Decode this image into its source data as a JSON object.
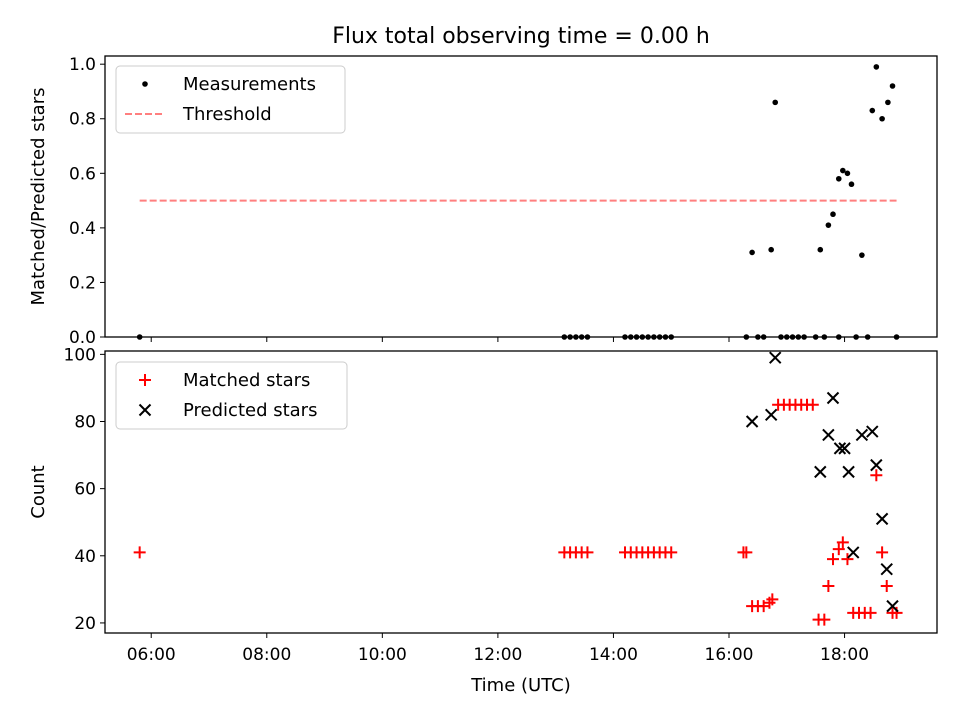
{
  "figure": {
    "title": "Flux total observing time = 0.00 h"
  },
  "chart_data": [
    {
      "type": "scatter",
      "ylabel": "Matched/Predicted stars",
      "xlabel": "",
      "xlim": [
        5.2,
        19.6
      ],
      "ylim": [
        0,
        1.03
      ],
      "yticks": [
        0.0,
        0.2,
        0.4,
        0.6,
        0.8,
        1.0
      ],
      "ytick_labels": [
        "0.0",
        "0.2",
        "0.4",
        "0.6",
        "0.8",
        "1.0"
      ],
      "xticks": [
        6,
        8,
        10,
        12,
        14,
        16,
        18
      ],
      "show_x_tick_labels": false,
      "legend_position": "top-left",
      "legend": [
        {
          "label": "Measurements",
          "marker": "dot",
          "color": "#000000"
        },
        {
          "label": "Threshold",
          "marker": "dashed-line",
          "color": "#ff7f7f"
        }
      ],
      "threshold": {
        "y": 0.5,
        "x_start": 5.8,
        "x_end": 18.9,
        "color": "#ff7f7f"
      },
      "series": [
        {
          "name": "Measurements",
          "color": "#000000",
          "points": [
            [
              5.8,
              0.0
            ],
            [
              13.15,
              0.0
            ],
            [
              13.25,
              0.0
            ],
            [
              13.35,
              0.0
            ],
            [
              13.45,
              0.0
            ],
            [
              13.55,
              0.0
            ],
            [
              14.2,
              0.0
            ],
            [
              14.3,
              0.0
            ],
            [
              14.4,
              0.0
            ],
            [
              14.5,
              0.0
            ],
            [
              14.6,
              0.0
            ],
            [
              14.7,
              0.0
            ],
            [
              14.8,
              0.0
            ],
            [
              14.9,
              0.0
            ],
            [
              15.0,
              0.0
            ],
            [
              16.3,
              0.0
            ],
            [
              16.5,
              0.0
            ],
            [
              16.6,
              0.0
            ],
            [
              16.9,
              0.0
            ],
            [
              17.0,
              0.0
            ],
            [
              17.1,
              0.0
            ],
            [
              17.2,
              0.0
            ],
            [
              17.3,
              0.0
            ],
            [
              17.5,
              0.0
            ],
            [
              17.65,
              0.0
            ],
            [
              17.9,
              0.0
            ],
            [
              18.2,
              0.0
            ],
            [
              18.4,
              0.0
            ],
            [
              18.9,
              0.0
            ],
            [
              16.4,
              0.31
            ],
            [
              16.73,
              0.32
            ],
            [
              16.8,
              0.86
            ],
            [
              17.58,
              0.32
            ],
            [
              17.72,
              0.41
            ],
            [
              17.8,
              0.45
            ],
            [
              17.9,
              0.58
            ],
            [
              17.97,
              0.61
            ],
            [
              18.05,
              0.6
            ],
            [
              18.12,
              0.56
            ],
            [
              18.3,
              0.3
            ],
            [
              18.48,
              0.83
            ],
            [
              18.55,
              0.99
            ],
            [
              18.65,
              0.8
            ],
            [
              18.75,
              0.86
            ],
            [
              18.83,
              0.92
            ]
          ]
        }
      ]
    },
    {
      "type": "scatter",
      "ylabel": "Count",
      "xlabel": "Time (UTC)",
      "xlim": [
        5.2,
        19.6
      ],
      "ylim": [
        17,
        101
      ],
      "yticks": [
        20,
        40,
        60,
        80,
        100
      ],
      "ytick_labels": [
        "20",
        "40",
        "60",
        "80",
        "100"
      ],
      "xticks": [
        6,
        8,
        10,
        12,
        14,
        16,
        18
      ],
      "xtick_labels": [
        "06:00",
        "08:00",
        "10:00",
        "12:00",
        "14:00",
        "16:00",
        "18:00"
      ],
      "legend_position": "top-left",
      "legend": [
        {
          "label": "Matched stars",
          "marker": "plus",
          "color": "#ff0000"
        },
        {
          "label": "Predicted stars",
          "marker": "x",
          "color": "#000000"
        }
      ],
      "series": [
        {
          "name": "Matched stars",
          "color": "#ff0000",
          "points": [
            [
              5.8,
              41
            ],
            [
              13.15,
              41
            ],
            [
              13.25,
              41
            ],
            [
              13.35,
              41
            ],
            [
              13.45,
              41
            ],
            [
              13.55,
              41
            ],
            [
              14.2,
              41
            ],
            [
              14.3,
              41
            ],
            [
              14.4,
              41
            ],
            [
              14.5,
              41
            ],
            [
              14.6,
              41
            ],
            [
              14.7,
              41
            ],
            [
              14.8,
              41
            ],
            [
              14.9,
              41
            ],
            [
              15.0,
              41
            ],
            [
              16.25,
              41
            ],
            [
              16.3,
              41
            ],
            [
              16.4,
              25
            ],
            [
              16.5,
              25
            ],
            [
              16.6,
              25
            ],
            [
              16.7,
              26
            ],
            [
              16.75,
              27
            ],
            [
              16.85,
              85
            ],
            [
              16.95,
              85
            ],
            [
              17.05,
              85
            ],
            [
              17.15,
              85
            ],
            [
              17.25,
              85
            ],
            [
              17.35,
              85
            ],
            [
              17.45,
              85
            ],
            [
              17.55,
              21
            ],
            [
              17.65,
              21
            ],
            [
              17.72,
              31
            ],
            [
              17.8,
              39
            ],
            [
              17.9,
              42
            ],
            [
              17.97,
              44
            ],
            [
              18.05,
              39
            ],
            [
              18.15,
              23
            ],
            [
              18.25,
              23
            ],
            [
              18.35,
              23
            ],
            [
              18.45,
              23
            ],
            [
              18.55,
              64
            ],
            [
              18.65,
              41
            ],
            [
              18.73,
              31
            ],
            [
              18.83,
              23
            ],
            [
              18.9,
              23
            ]
          ]
        },
        {
          "name": "Predicted stars",
          "color": "#000000",
          "points": [
            [
              16.4,
              80
            ],
            [
              16.73,
              82
            ],
            [
              16.8,
              99
            ],
            [
              17.58,
              65
            ],
            [
              17.72,
              76
            ],
            [
              17.8,
              87
            ],
            [
              17.92,
              72
            ],
            [
              18.0,
              72
            ],
            [
              18.07,
              65
            ],
            [
              18.15,
              41
            ],
            [
              18.3,
              76
            ],
            [
              18.48,
              77
            ],
            [
              18.55,
              67
            ],
            [
              18.65,
              51
            ],
            [
              18.73,
              36
            ],
            [
              18.83,
              25
            ]
          ]
        }
      ]
    }
  ]
}
